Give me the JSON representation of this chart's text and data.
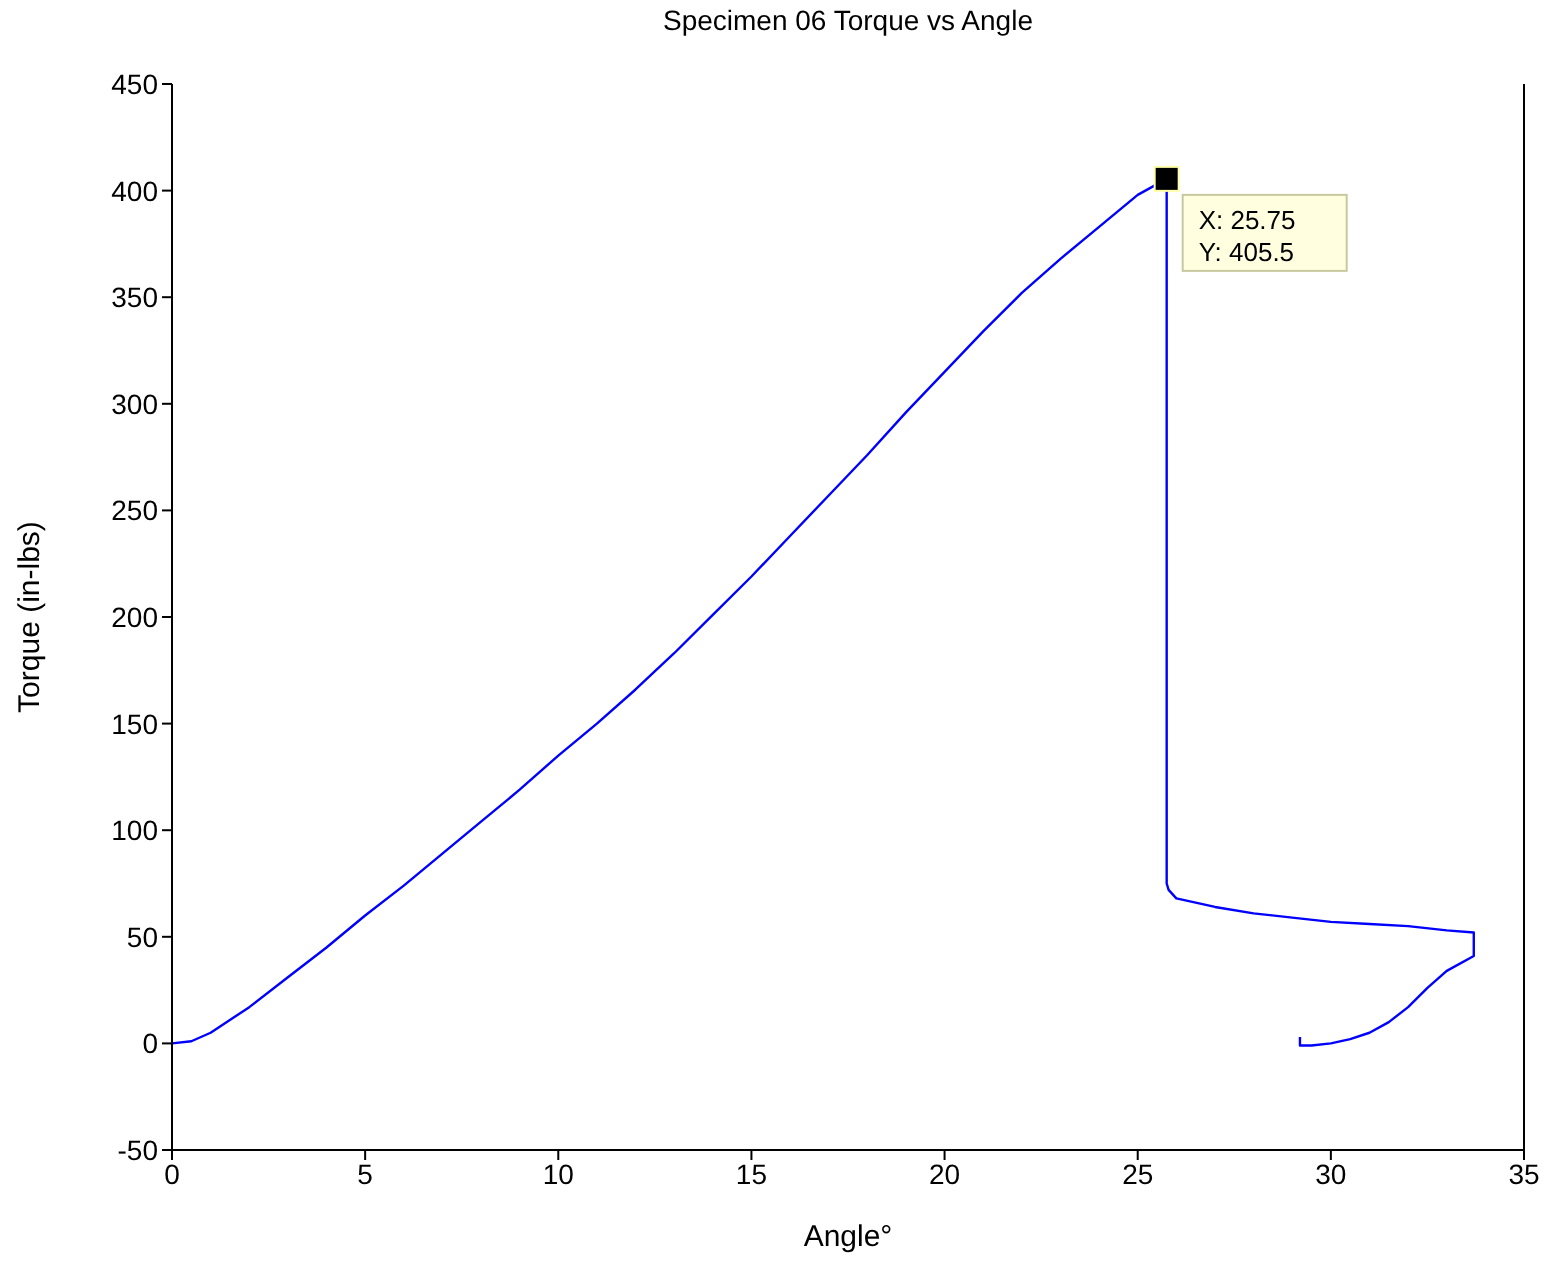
{
  "chart_data": {
    "type": "line",
    "title": "Specimen 06 Torque vs Angle",
    "xlabel": "Angle°",
    "ylabel": "Torque (in-lbs)",
    "xlim": [
      0,
      35
    ],
    "xticks": [
      0,
      5,
      10,
      15,
      20,
      25,
      30,
      35
    ],
    "ylim": [
      -50,
      450
    ],
    "yticks": [
      -50,
      0,
      50,
      100,
      150,
      200,
      250,
      300,
      350,
      400,
      450
    ],
    "grid": false,
    "marker": "none",
    "line_style": "solid",
    "annotations": [
      {
        "text": "X: 25.75\nY: 405.5",
        "x": 25.75,
        "y": 405.5
      }
    ],
    "series": [
      {
        "color": "#0000ff",
        "x": [
          0,
          0.5,
          1,
          2,
          3,
          4,
          5,
          6,
          7,
          8,
          9,
          10,
          11,
          12,
          13,
          14,
          15,
          16,
          17,
          18,
          19,
          20,
          21,
          22,
          23,
          24,
          25,
          25.75,
          25.75,
          25.8,
          26,
          27,
          28,
          29,
          30,
          31,
          32,
          33,
          33.7,
          33.7,
          33,
          32.5,
          32,
          31.5,
          31,
          30.5,
          30,
          29.5,
          29.2,
          29.2
        ],
        "values": [
          0,
          1,
          5,
          17,
          31,
          45,
          60,
          74,
          89,
          104,
          119,
          135,
          150,
          166,
          183,
          201,
          219,
          238,
          257,
          276,
          296,
          315,
          334,
          352,
          368,
          383,
          398,
          405.5,
          75,
          72,
          68,
          64,
          61,
          59,
          57,
          56,
          55,
          53,
          52,
          41,
          34,
          26,
          17,
          10,
          5,
          2,
          0,
          -1,
          -1,
          3
        ]
      }
    ]
  }
}
